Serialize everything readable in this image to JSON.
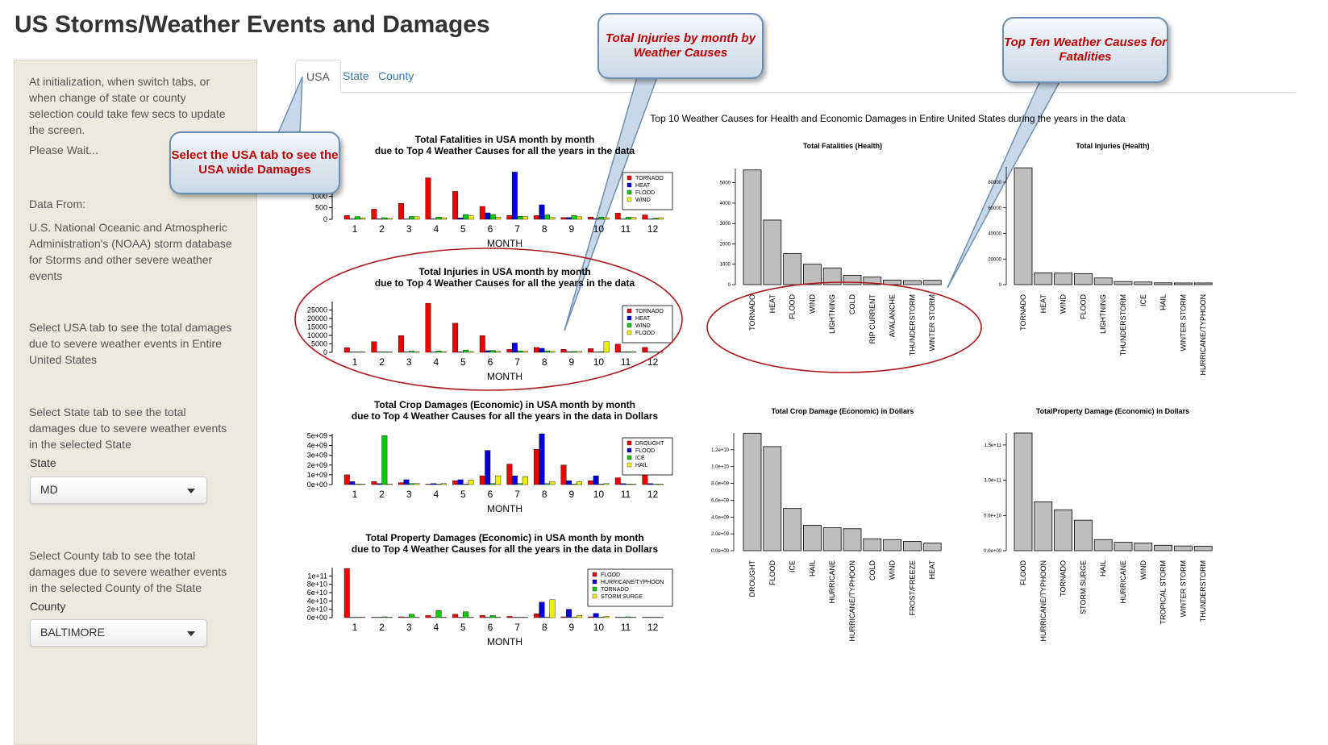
{
  "page": {
    "title": "US Storms/Weather Events and Damages"
  },
  "sidebar": {
    "init_note": "At initialization, when switch tabs, or when change of state or county selection could take few secs to update the screen.",
    "wait_note": "Please Wait...",
    "data_from_label": "Data From:",
    "data_source": "U.S. National Oceanic and Atmospheric Administration's (NOAA) storm database for Storms and other severe weather events",
    "usa_help": "Select USA tab to see the total damages due to severe weather events in Entire United States",
    "state_help": "Select State tab to see the total damages due to severe weather events in the selected State",
    "state_label": "State",
    "state_value": "MD",
    "county_help": "Select County tab to see the total damages due to severe weather events in the selected County of the State",
    "county_label": "County",
    "county_value": "BALTIMORE"
  },
  "tabs": [
    {
      "label": "USA",
      "active": true
    },
    {
      "label": "State",
      "active": false
    },
    {
      "label": "County",
      "active": false
    }
  ],
  "callouts": {
    "usa_tab": "Select the USA tab to see the USA wide Damages",
    "injuries_month": "Total Injuries by month by Weather Causes",
    "top_ten": "Top Ten Weather Causes for Fatalities"
  },
  "colors": {
    "red": "#ee0000",
    "blue": "#0000dd",
    "green": "#00cc00",
    "yellow": "#eeee00",
    "gray": "#bebebe",
    "callout_text": "#c00000"
  },
  "chart_data": [
    {
      "type": "bar",
      "title": "Total Fatalities in USA month by month",
      "subtitle": "due to Top 4 Weather Causes for all the years in the data",
      "xlabel": "MONTH",
      "categories": [
        "1",
        "2",
        "3",
        "4",
        "5",
        "6",
        "7",
        "8",
        "9",
        "10",
        "11",
        "12"
      ],
      "yticks": [
        "0",
        "500",
        "1000",
        "1500",
        "2000"
      ],
      "ylim": [
        0,
        2100
      ],
      "series": [
        {
          "name": "TORNADO",
          "values": [
            170,
            440,
            690,
            1800,
            1210,
            560,
            170,
            160,
            80,
            100,
            270,
            190
          ]
        },
        {
          "name": "HEAT",
          "values": [
            20,
            20,
            10,
            20,
            60,
            280,
            2050,
            630,
            80,
            30,
            10,
            10
          ]
        },
        {
          "name": "FLOOD",
          "values": [
            120,
            70,
            120,
            100,
            200,
            210,
            130,
            190,
            170,
            90,
            90,
            50
          ]
        },
        {
          "name": "WIND",
          "values": [
            60,
            40,
            110,
            70,
            150,
            90,
            120,
            80,
            110,
            70,
            80,
            70
          ]
        }
      ]
    },
    {
      "type": "bar",
      "title": "Total Injuries in USA month by month",
      "subtitle": "due to Top 4 Weather Causes for all the years in the data",
      "xlabel": "MONTH",
      "categories": [
        "1",
        "2",
        "3",
        "4",
        "5",
        "6",
        "7",
        "8",
        "9",
        "10",
        "11",
        "12"
      ],
      "yticks": [
        "0",
        "5000",
        "10000",
        "15000",
        "20000",
        "25000"
      ],
      "ylim": [
        0,
        30000
      ],
      "series": [
        {
          "name": "TORNADO",
          "values": [
            2800,
            6300,
            9900,
            29000,
            17200,
            9900,
            1700,
            2900,
            1800,
            2200,
            4800,
            3000
          ]
        },
        {
          "name": "HEAT",
          "values": [
            50,
            50,
            50,
            100,
            300,
            1000,
            5500,
            2400,
            300,
            200,
            50,
            50
          ]
        },
        {
          "name": "WIND",
          "values": [
            200,
            300,
            700,
            800,
            1400,
            1100,
            900,
            900,
            500,
            400,
            400,
            200
          ]
        },
        {
          "name": "FLOOD",
          "values": [
            200,
            200,
            400,
            400,
            500,
            600,
            600,
            500,
            500,
            6300,
            300,
            200
          ]
        }
      ]
    },
    {
      "type": "bar",
      "title": "Total Crop Damages (Economic) in USA month by month",
      "subtitle": "due to Top 4 Weather Causes for all the years in the data in Dollars",
      "xlabel": "MONTH",
      "categories": [
        "1",
        "2",
        "3",
        "4",
        "5",
        "6",
        "7",
        "8",
        "9",
        "10",
        "11",
        "12"
      ],
      "yticks": [
        "0e+00",
        "1e+09",
        "2e+09",
        "3e+09",
        "4e+09",
        "5e+09"
      ],
      "ylim": [
        0,
        5200000000
      ],
      "series": [
        {
          "name": "DROUGHT",
          "values": [
            1000000000,
            300000000,
            200000000,
            50000000,
            400000000,
            900000000,
            2100000000,
            3600000000,
            2000000000,
            400000000,
            700000000,
            1100000000
          ]
        },
        {
          "name": "FLOOD",
          "values": [
            300000000,
            100000000,
            500000000,
            100000000,
            500000000,
            3500000000,
            900000000,
            5200000000,
            400000000,
            900000000,
            100000000,
            100000000
          ]
        },
        {
          "name": "ICE",
          "values": [
            50000000,
            5000000000,
            100000000,
            50000000,
            50000000,
            100000000,
            100000000,
            100000000,
            50000000,
            50000000,
            50000000,
            50000000
          ]
        },
        {
          "name": "HAIL",
          "values": [
            50000000,
            50000000,
            100000000,
            100000000,
            450000000,
            900000000,
            800000000,
            300000000,
            300000000,
            100000000,
            50000000,
            50000000
          ]
        }
      ]
    },
    {
      "type": "bar",
      "title": "Total Property Damages (Economic) in USA month by month",
      "subtitle": "due to Top 4 Weather Causes for all the years in the data in Dollars",
      "xlabel": "MONTH",
      "categories": [
        "1",
        "2",
        "3",
        "4",
        "5",
        "6",
        "7",
        "8",
        "9",
        "10",
        "11",
        "12"
      ],
      "yticks": [
        "0e+00",
        "2e+10",
        "4e+10",
        "6e+10",
        "8e+10",
        "1e+11"
      ],
      "ylim": [
        0,
        120000000000
      ],
      "series": [
        {
          "name": "FLOOD",
          "values": [
            118000000000,
            1000000000,
            2000000000,
            5000000000,
            8000000000,
            5000000000,
            3000000000,
            9000000000,
            2000000000,
            2000000000,
            1000000000,
            1000000000
          ]
        },
        {
          "name": "HURRICANE/TYPHOON",
          "values": [
            0,
            0,
            0,
            0,
            0,
            0,
            0,
            37000000000,
            20000000000,
            10000000000,
            0,
            0
          ]
        },
        {
          "name": "TORNADO",
          "values": [
            1000000000,
            2000000000,
            8000000000,
            17000000000,
            14000000000,
            5000000000,
            1000000000,
            1000000000,
            1000000000,
            1000000000,
            2000000000,
            1000000000
          ]
        },
        {
          "name": "STORM SURGE",
          "values": [
            0,
            0,
            0,
            0,
            0,
            0,
            0,
            43000000000,
            5000000000,
            3000000000,
            0,
            0
          ]
        }
      ]
    },
    {
      "type": "bar",
      "title": "Total Fatalities (Health)",
      "categories": [
        "TORNADO",
        "HEAT",
        "FLOOD",
        "WIND",
        "LIGHTNING",
        "COLD",
        "RIP CURRENT",
        "AVALANCHE",
        "THUNDERSTORM",
        "WINTER STORM"
      ],
      "values": [
        5630,
        3170,
        1520,
        1000,
        820,
        460,
        370,
        225,
        200,
        210
      ],
      "yticks": [
        "0",
        "1000",
        "2000",
        "3000",
        "4000",
        "5000"
      ],
      "ylim": [
        0,
        5700
      ]
    },
    {
      "type": "bar",
      "title": "Total Injuries (Health)",
      "categories": [
        "TORNADO",
        "HEAT",
        "WIND",
        "FLOOD",
        "LIGHTNING",
        "THUNDERSTORM",
        "ICE",
        "HAIL",
        "WINTER STORM",
        "HURRICANE/TYPHOON"
      ],
      "values": [
        91300,
        9200,
        9000,
        8600,
        5200,
        2400,
        2000,
        1400,
        1300,
        1300
      ],
      "yticks": [
        "0",
        "20000",
        "40000",
        "60000",
        "80000"
      ],
      "ylim": [
        0,
        92000
      ]
    },
    {
      "type": "bar",
      "title": "Total Crop Damage (Economic)  in Dollars",
      "categories": [
        "DROUGHT",
        "FLOOD",
        "ICE",
        "HAIL",
        "HURRICANE",
        "HURRICANE/TYPHOON",
        "COLD",
        "WIND",
        "FROST/FREEZE",
        "HEAT"
      ],
      "values": [
        13970000000,
        12380000000,
        5020000000,
        3030000000,
        2740000000,
        2610000000,
        1420000000,
        1320000000,
        1100000000,
        900000000
      ],
      "yticks": [
        "0.0e+00",
        "2.0e+09",
        "4.0e+09",
        "6.0e+09",
        "8.0e+09",
        "1.0e+10",
        "1.2e+10"
      ],
      "ylim": [
        0,
        14000000000
      ]
    },
    {
      "type": "bar",
      "title": "TotalProperty Damage (Economic)  in Dollars",
      "categories": [
        "FLOOD",
        "HURRICANE/TYPHOON",
        "TORNADO",
        "STORM SURGE",
        "HAIL",
        "HURRICANE",
        "WIND",
        "TROPICAL STORM",
        "WINTER STORM",
        "THUNDERSTORM"
      ],
      "values": [
        167000000000,
        69300000000,
        58000000000,
        43300000000,
        15700000000,
        11900000000,
        10800000000,
        7700000000,
        6700000000,
        6300000000
      ],
      "yticks": [
        "0.0e+00",
        "5.0e+10",
        "1.0e+11",
        "1.5e+11"
      ],
      "ylim": [
        0,
        167000000000
      ]
    }
  ],
  "right_panel_title": "Top 10 Weather Causes for Health and Economic Damages in Entire United States during the years in the data"
}
